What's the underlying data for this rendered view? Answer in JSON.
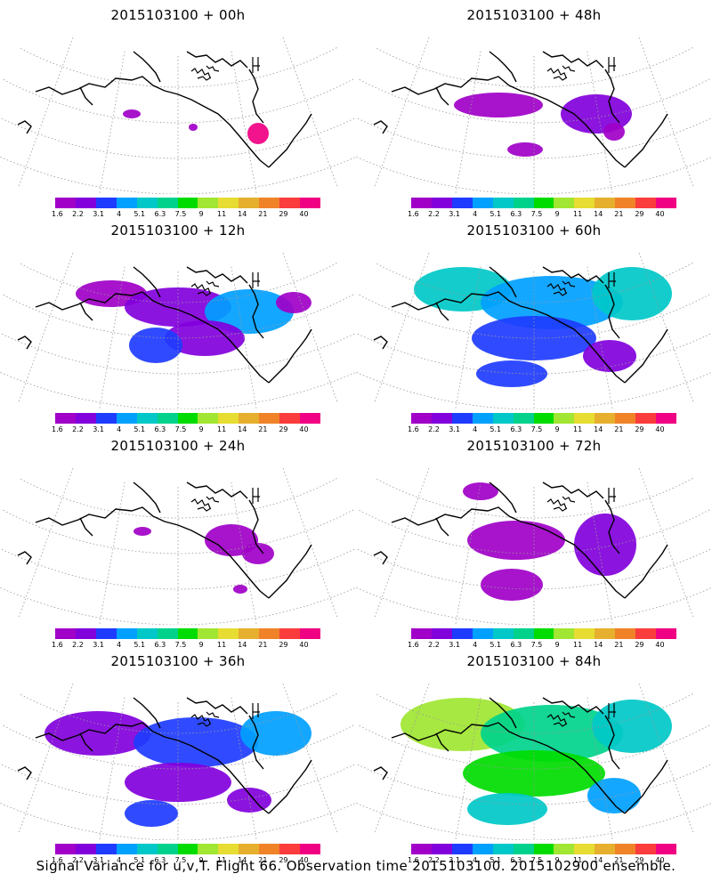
{
  "panels": [
    {
      "title": "2015103100 + 00h",
      "intensity": 0
    },
    {
      "title": "2015103100 + 48h",
      "intensity": 4
    },
    {
      "title": "2015103100 + 12h",
      "intensity": 1
    },
    {
      "title": "2015103100 + 60h",
      "intensity": 5
    },
    {
      "title": "2015103100 + 24h",
      "intensity": 2
    },
    {
      "title": "2015103100 + 72h",
      "intensity": 6
    },
    {
      "title": "2015103100 + 36h",
      "intensity": 3
    },
    {
      "title": "2015103100 + 84h",
      "intensity": 7
    }
  ],
  "colorbar": {
    "labels": [
      "1.6",
      "2.2",
      "3.1",
      "4",
      "5.1",
      "6.3",
      "7.5",
      "9",
      "11",
      "14",
      "21",
      "29",
      "40"
    ],
    "colors": [
      "#a000c8",
      "#8200dc",
      "#1e3cff",
      "#00a0ff",
      "#00c8c8",
      "#00d28c",
      "#00dc00",
      "#a0e632",
      "#e6dc32",
      "#e6af2d",
      "#f08228",
      "#fa3c3c",
      "#f00082"
    ]
  },
  "footer": "Signal Variance for u,v,T. Flight 66. Observation time 2015103100. 2015102900 ensemble."
}
